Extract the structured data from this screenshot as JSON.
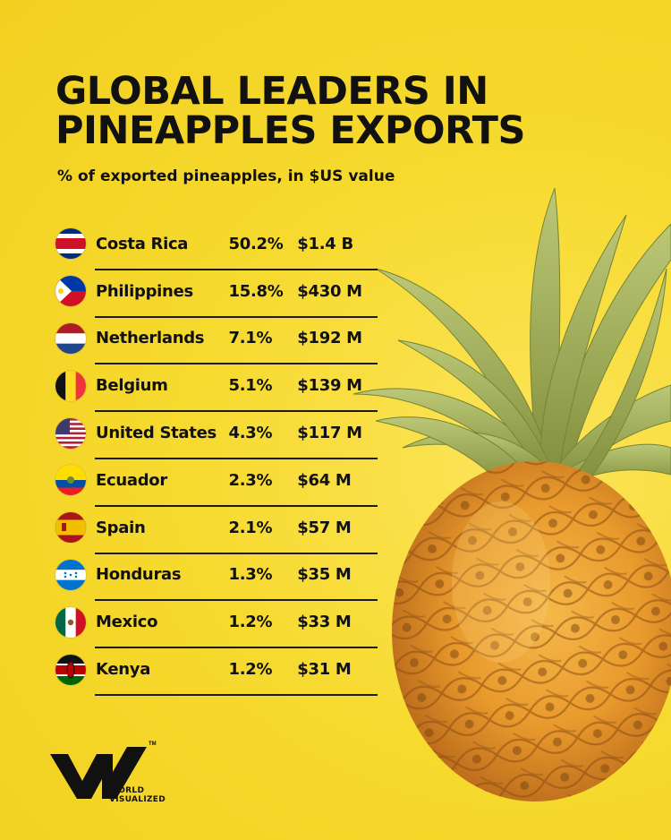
{
  "title_line1": "GLOBAL LEADERS IN",
  "title_line2": "PINEAPPLES EXPORTS",
  "subtitle": "% of exported pineapples, in $US value",
  "brand": {
    "line1": "WORLD",
    "line2": "VISUALIZED",
    "tm": "TM"
  },
  "chart_data": {
    "type": "table",
    "title": "GLOBAL LEADERS IN PINEAPPLES EXPORTS",
    "subtitle": "% of exported pineapples, in $US value",
    "rows": [
      {
        "flag": "costa-rica-flag-icon",
        "country": "Costa Rica",
        "share": "50.2%",
        "value": "$1.4 B",
        "share_num": 50.2
      },
      {
        "flag": "philippines-flag-icon",
        "country": "Philippines",
        "share": "15.8%",
        "value": "$430 M",
        "share_num": 15.8
      },
      {
        "flag": "netherlands-flag-icon",
        "country": "Netherlands",
        "share": "7.1%",
        "value": "$192 M",
        "share_num": 7.1
      },
      {
        "flag": "belgium-flag-icon",
        "country": "Belgium",
        "share": "5.1%",
        "value": "$139 M",
        "share_num": 5.1
      },
      {
        "flag": "united-states-flag-icon",
        "country": "United States",
        "share": "4.3%",
        "value": "$117 M",
        "share_num": 4.3
      },
      {
        "flag": "ecuador-flag-icon",
        "country": "Ecuador",
        "share": "2.3%",
        "value": "$64 M",
        "share_num": 2.3
      },
      {
        "flag": "spain-flag-icon",
        "country": "Spain",
        "share": "2.1%",
        "value": "$57 M",
        "share_num": 2.1
      },
      {
        "flag": "honduras-flag-icon",
        "country": "Honduras",
        "share": "1.3%",
        "value": "$35 M",
        "share_num": 1.3
      },
      {
        "flag": "mexico-flag-icon",
        "country": "Mexico",
        "share": "1.2%",
        "value": "$33 M",
        "share_num": 1.2
      },
      {
        "flag": "kenya-flag-icon",
        "country": "Kenya",
        "share": "1.2%",
        "value": "$31 M",
        "share_num": 1.2
      }
    ]
  },
  "colors": {
    "background": "#f7da2f",
    "text": "#111111",
    "rule": "#1a1a1a"
  }
}
